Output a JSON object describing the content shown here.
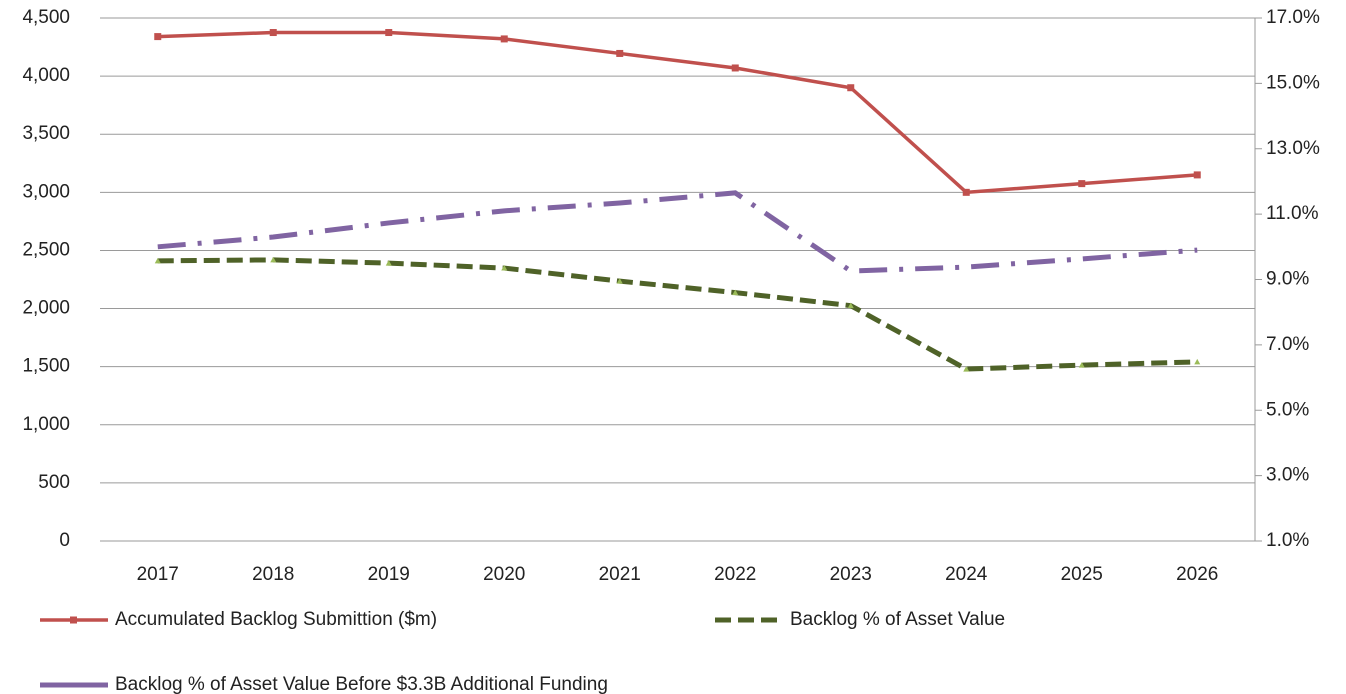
{
  "chart_data": {
    "type": "line",
    "categories": [
      "2017",
      "2018",
      "2019",
      "2020",
      "2021",
      "2022",
      "2023",
      "2024",
      "2025",
      "2026"
    ],
    "series": [
      {
        "name": "Accumulated Backlog Submittion ($m)",
        "color": "#c0504d",
        "style": "solid",
        "values": [
          4340,
          4375,
          4375,
          4320,
          4195,
          4070,
          3900,
          3000,
          3075,
          3150
        ]
      },
      {
        "name": "Backlog % of Asset Value",
        "color": "#4f6228",
        "style": "dashed",
        "axis": "y2",
        "values": [
          9.57,
          9.6,
          9.5,
          9.35,
          8.95,
          8.6,
          8.2,
          6.26,
          6.38,
          6.48
        ]
      },
      {
        "name": "Backlog % of Asset Value Before $3.3B Additional Funding",
        "color": "#8064a2",
        "style": "dashdot",
        "axis": "y2",
        "values": [
          10.0,
          10.3,
          10.73,
          11.1,
          11.34,
          11.65,
          9.26,
          9.38,
          9.63,
          9.9
        ]
      }
    ],
    "ylim": [
      0,
      4500
    ],
    "yticks": [
      0,
      500,
      {
        "value": 1000,
        "label": "1,000"
      },
      {
        "value": 1500,
        "label": "1,500"
      },
      {
        "value": 2000,
        "label": "2,000"
      },
      {
        "value": 2500,
        "label": "2,500"
      },
      {
        "value": 3000,
        "label": "3,000"
      },
      {
        "value": 3500,
        "label": "3,500"
      },
      {
        "value": 4000,
        "label": "4,000"
      },
      {
        "value": 4500,
        "label": "4,500"
      }
    ],
    "y2lim": [
      1,
      17
    ],
    "y2ticks": [
      {
        "value": 1,
        "label": "1.0%"
      },
      {
        "value": 3,
        "label": "3.0%"
      },
      {
        "value": 5,
        "label": "5.0%"
      },
      {
        "value": 7,
        "label": "7.0%"
      },
      {
        "value": 9,
        "label": "9.0%"
      },
      {
        "value": 11,
        "label": "11.0%"
      },
      {
        "value": 13,
        "label": "13.0%"
      },
      {
        "value": 15,
        "label": "15.0%"
      },
      {
        "value": 17,
        "label": "17.0%"
      }
    ],
    "grid": true,
    "legend": "bottom"
  }
}
